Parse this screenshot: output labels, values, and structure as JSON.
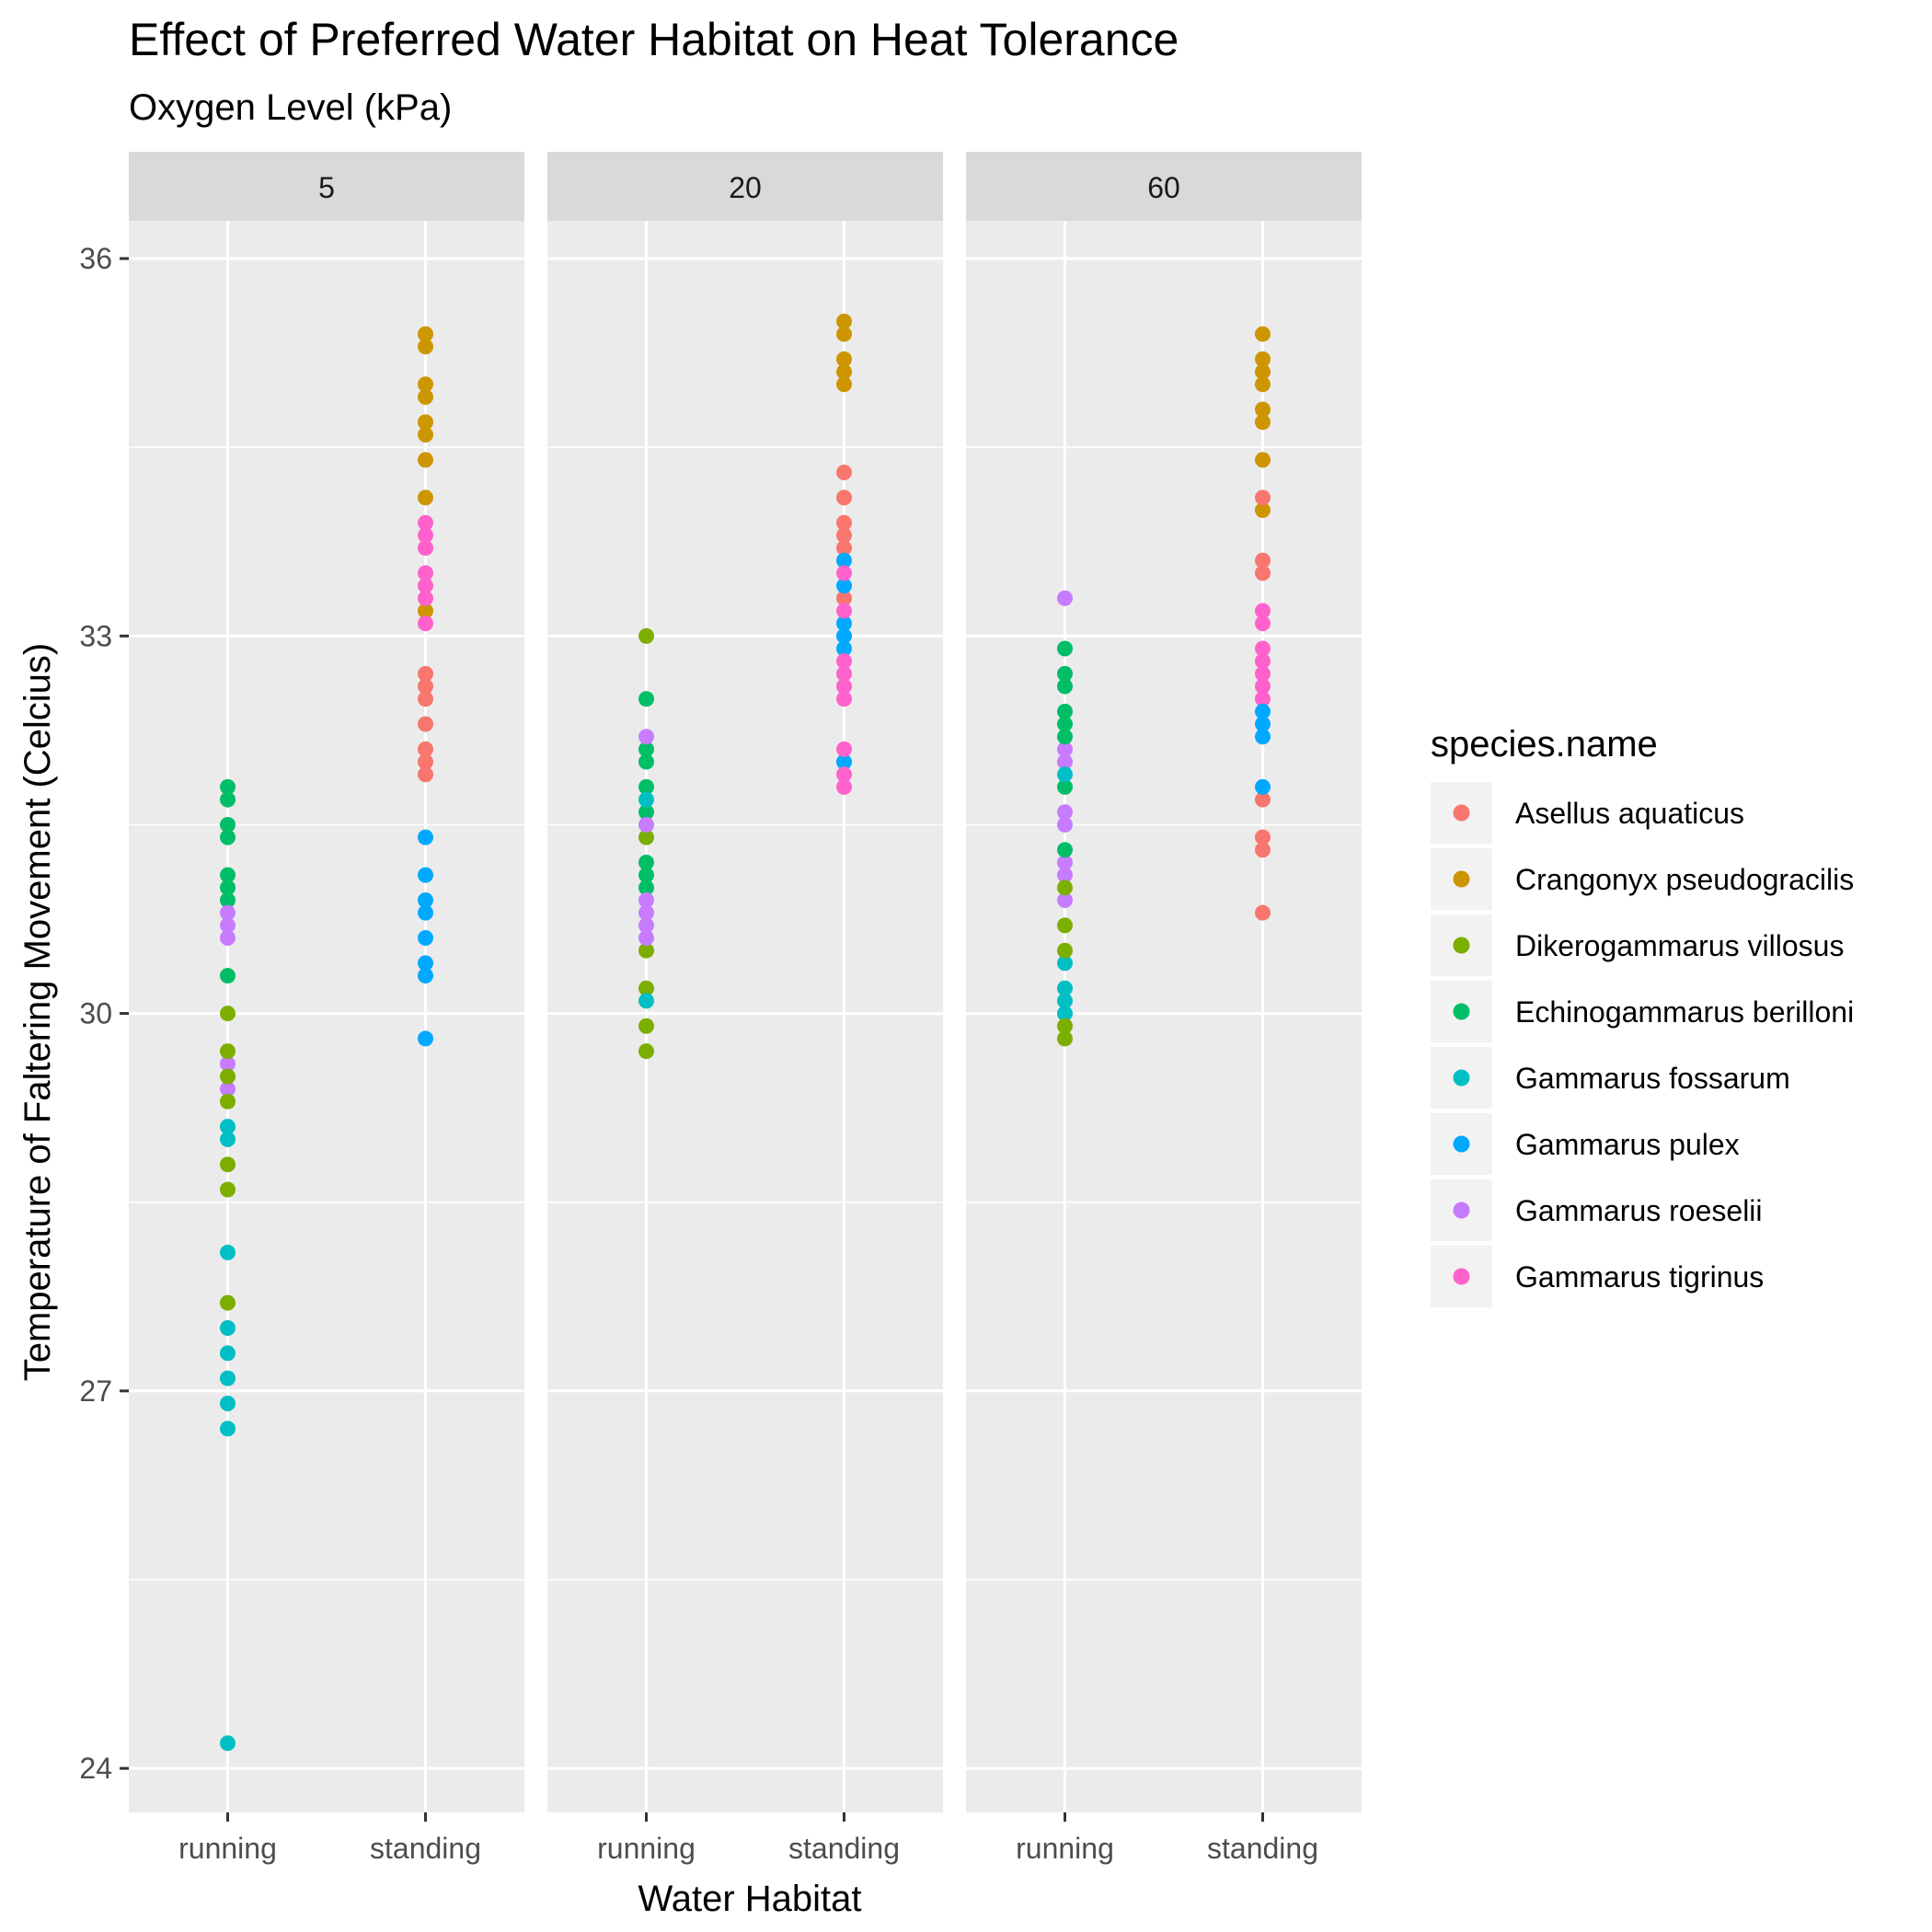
{
  "chart_data": {
    "type": "scatter",
    "title": "Effect of Preferred Water Habitat on Heat Tolerance",
    "subtitle": "Oxygen Level (kPa)",
    "xlabel": "Water Habitat",
    "ylabel": "Temperature of Faltering Movement (Celcius)",
    "ylim": [
      23.65,
      36.3
    ],
    "yticks": [
      24,
      27,
      30,
      33,
      36
    ],
    "facets": [
      "5",
      "20",
      "60"
    ],
    "categories": [
      "running",
      "standing"
    ],
    "grid": true,
    "legend": {
      "title": "species.name",
      "position": "right",
      "entries": [
        "Asellus aquaticus",
        "Crangonyx pseudogracilis",
        "Dikerogammarus villosus",
        "Echinogammarus berilloni",
        "Gammarus fossarum",
        "Gammarus pulex",
        "Gammarus roeselii",
        "Gammarus tigrinus"
      ]
    },
    "colors": {
      "Asellus aquaticus": "#F8766D",
      "Crangonyx pseudogracilis": "#CD9600",
      "Dikerogammarus villosus": "#7CAE00",
      "Echinogammarus berilloni": "#00BE67",
      "Gammarus fossarum": "#00BFC4",
      "Gammarus pulex": "#00A9FF",
      "Gammarus roeselii": "#C77CFF",
      "Gammarus tigrinus": "#FF61CC"
    },
    "series": [
      {
        "facet": "5",
        "habitat": "running",
        "species": "Echinogammarus berilloni",
        "values": [
          31.8,
          31.7,
          31.5,
          31.4,
          31.1,
          31.0,
          30.9,
          30.3
        ]
      },
      {
        "facet": "5",
        "habitat": "running",
        "species": "Gammarus roeselii",
        "values": [
          30.8,
          30.7,
          30.6,
          29.6,
          29.4
        ]
      },
      {
        "facet": "5",
        "habitat": "running",
        "species": "Dikerogammarus villosus",
        "values": [
          30.0,
          29.7,
          29.5,
          29.3,
          28.8,
          28.6,
          27.7
        ]
      },
      {
        "facet": "5",
        "habitat": "running",
        "species": "Gammarus fossarum",
        "values": [
          29.1,
          29.0,
          28.1,
          27.5,
          27.3,
          27.1,
          26.9,
          26.7,
          24.2
        ]
      },
      {
        "facet": "5",
        "habitat": "standing",
        "species": "Crangonyx pseudogracilis",
        "values": [
          35.4,
          35.3,
          35.0,
          34.9,
          34.7,
          34.6,
          34.4,
          34.1,
          33.2
        ]
      },
      {
        "facet": "5",
        "habitat": "standing",
        "species": "Gammarus tigrinus",
        "values": [
          33.9,
          33.8,
          33.7,
          33.5,
          33.4,
          33.3,
          33.1
        ]
      },
      {
        "facet": "5",
        "habitat": "standing",
        "species": "Asellus aquaticus",
        "values": [
          32.7,
          32.6,
          32.5,
          32.3,
          32.1,
          32.0,
          31.9
        ]
      },
      {
        "facet": "5",
        "habitat": "standing",
        "species": "Gammarus pulex",
        "values": [
          31.4,
          31.1,
          30.9,
          30.8,
          30.6,
          30.4,
          30.3,
          29.8
        ]
      },
      {
        "facet": "20",
        "habitat": "running",
        "species": "Dikerogammarus villosus",
        "values": [
          33.0,
          31.4,
          30.5,
          30.2,
          29.9,
          29.7
        ]
      },
      {
        "facet": "20",
        "habitat": "running",
        "species": "Echinogammarus berilloni",
        "values": [
          32.5,
          32.1,
          32.0,
          31.8,
          31.6,
          31.2,
          31.1,
          31.0
        ]
      },
      {
        "facet": "20",
        "habitat": "running",
        "species": "Gammarus roeselii",
        "values": [
          32.2,
          31.5,
          30.9,
          30.8,
          30.7,
          30.6
        ]
      },
      {
        "facet": "20",
        "habitat": "running",
        "species": "Gammarus fossarum",
        "values": [
          31.7,
          30.1
        ]
      },
      {
        "facet": "20",
        "habitat": "standing",
        "species": "Crangonyx pseudogracilis",
        "values": [
          35.5,
          35.4,
          35.2,
          35.1,
          35.0
        ]
      },
      {
        "facet": "20",
        "habitat": "standing",
        "species": "Asellus aquaticus",
        "values": [
          34.3,
          34.1,
          33.9,
          33.8,
          33.7,
          33.3
        ]
      },
      {
        "facet": "20",
        "habitat": "standing",
        "species": "Gammarus pulex",
        "values": [
          33.6,
          33.4,
          33.1,
          33.0,
          32.9,
          32.0
        ]
      },
      {
        "facet": "20",
        "habitat": "standing",
        "species": "Gammarus tigrinus",
        "values": [
          33.5,
          33.2,
          32.8,
          32.7,
          32.6,
          32.5,
          32.1,
          31.9,
          31.8
        ]
      },
      {
        "facet": "60",
        "habitat": "running",
        "species": "Gammarus roeselii",
        "values": [
          33.3,
          32.1,
          32.0,
          31.6,
          31.5,
          31.2,
          31.1,
          30.9
        ]
      },
      {
        "facet": "60",
        "habitat": "running",
        "species": "Echinogammarus berilloni",
        "values": [
          32.9,
          32.7,
          32.6,
          32.4,
          32.3,
          32.2,
          31.8,
          31.3
        ]
      },
      {
        "facet": "60",
        "habitat": "running",
        "species": "Gammarus fossarum",
        "values": [
          31.9,
          30.4,
          30.2,
          30.1,
          30.0
        ]
      },
      {
        "facet": "60",
        "habitat": "running",
        "species": "Dikerogammarus villosus",
        "values": [
          31.0,
          30.7,
          30.5,
          29.9,
          29.8
        ]
      },
      {
        "facet": "60",
        "habitat": "standing",
        "species": "Crangonyx pseudogracilis",
        "values": [
          35.4,
          35.2,
          35.1,
          35.0,
          34.8,
          34.7,
          34.4,
          34.0
        ]
      },
      {
        "facet": "60",
        "habitat": "standing",
        "species": "Asellus aquaticus",
        "values": [
          34.1,
          33.6,
          33.5,
          31.7,
          31.4,
          31.3,
          30.8
        ]
      },
      {
        "facet": "60",
        "habitat": "standing",
        "species": "Gammarus tigrinus",
        "values": [
          33.2,
          33.1,
          32.9,
          32.8,
          32.7,
          32.6,
          32.5
        ]
      },
      {
        "facet": "60",
        "habitat": "standing",
        "species": "Gammarus pulex",
        "values": [
          32.4,
          32.3,
          32.2,
          31.8
        ]
      }
    ]
  }
}
